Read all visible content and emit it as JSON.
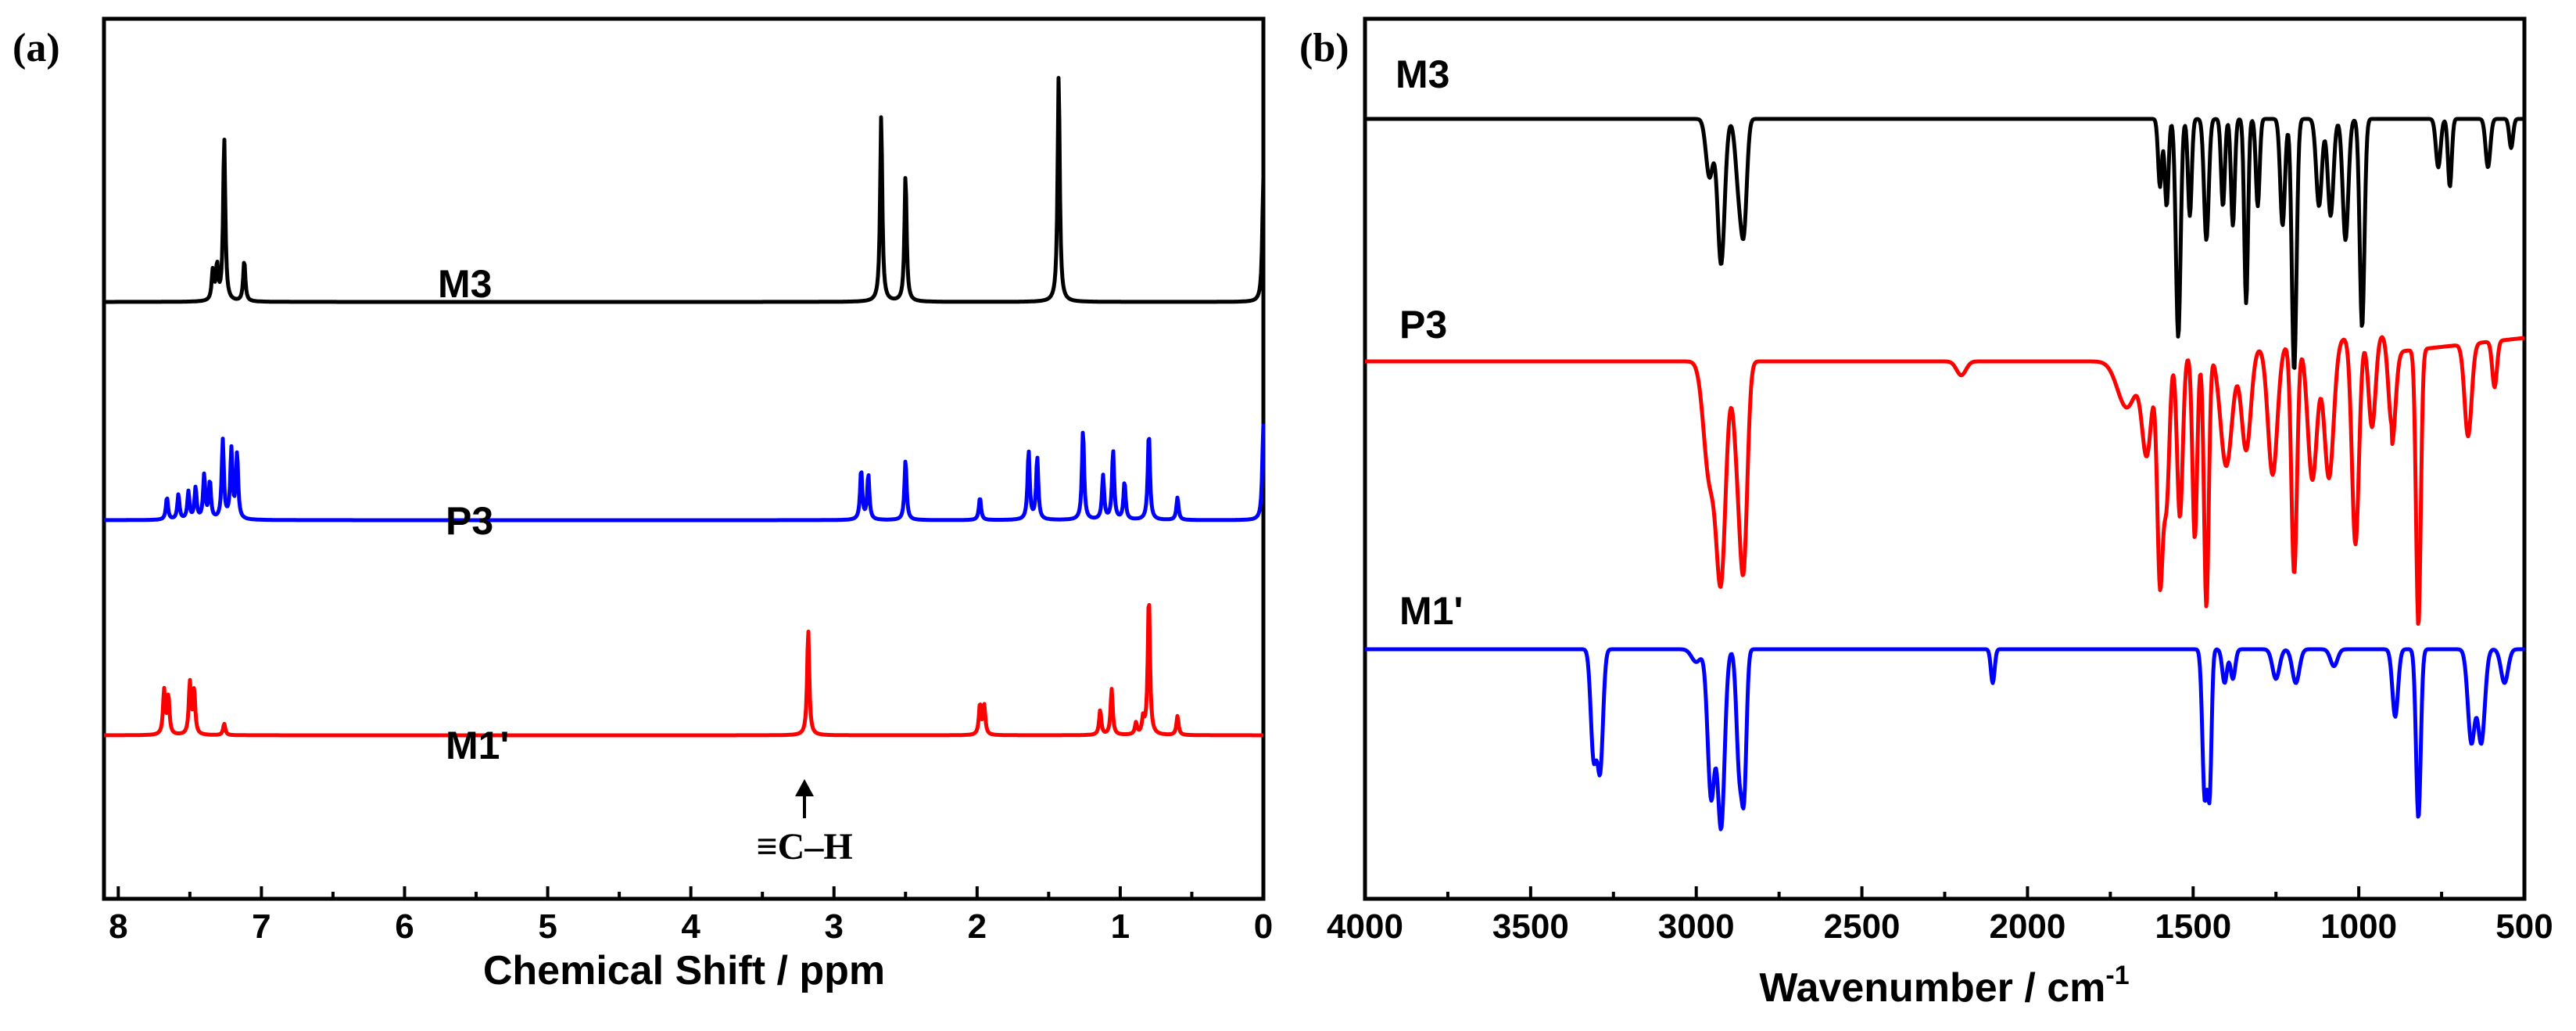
{
  "chart_data": [
    {
      "panel": "(a)",
      "type": "line",
      "subtype": "1H NMR spectra (stacked)",
      "xlabel": "Chemical Shift / ppm",
      "xlim": [
        8.1,
        0
      ],
      "xticks": [
        8,
        7,
        6,
        5,
        4,
        3,
        2,
        1,
        0
      ],
      "xtick_labels": [
        "8",
        "7",
        "6",
        "5",
        "4",
        "3",
        "2",
        "1",
        "0"
      ],
      "series": [
        {
          "name": "M3",
          "color": "#000000",
          "peaks": [
            [
              7.34,
              0.13
            ],
            [
              7.31,
              0.15
            ],
            [
              7.26,
              0.72
            ],
            [
              7.12,
              0.18
            ],
            [
              2.67,
              0.82
            ],
            [
              2.5,
              0.56
            ],
            [
              1.43,
              1.0
            ],
            [
              0.0,
              0.55
            ]
          ]
        },
        {
          "name": "P3",
          "color": "#0000ff",
          "peaks": [
            [
              7.66,
              0.18
            ],
            [
              7.58,
              0.2
            ],
            [
              7.51,
              0.22
            ],
            [
              7.46,
              0.25
            ],
            [
              7.4,
              0.35
            ],
            [
              7.36,
              0.3
            ],
            [
              7.27,
              0.63
            ],
            [
              7.21,
              0.55
            ],
            [
              7.17,
              0.52
            ],
            [
              2.81,
              0.4
            ],
            [
              2.76,
              0.36
            ],
            [
              2.5,
              0.48
            ],
            [
              1.98,
              0.18
            ],
            [
              1.64,
              0.55
            ],
            [
              1.58,
              0.5
            ],
            [
              1.26,
              0.72
            ],
            [
              1.12,
              0.35
            ],
            [
              1.05,
              0.55
            ],
            [
              0.97,
              0.3
            ],
            [
              0.8,
              0.7
            ],
            [
              0.6,
              0.18
            ],
            [
              0.0,
              0.77
            ]
          ]
        },
        {
          "name": "M1'",
          "color": "#ff0000",
          "peaks": [
            [
              7.68,
              0.23
            ],
            [
              7.65,
              0.2
            ],
            [
              7.5,
              0.27
            ],
            [
              7.47,
              0.23
            ],
            [
              7.26,
              0.06
            ],
            [
              3.18,
              0.55
            ],
            [
              1.98,
              0.16
            ],
            [
              1.95,
              0.15
            ],
            [
              1.14,
              0.13
            ],
            [
              1.06,
              0.24
            ],
            [
              0.89,
              0.06
            ],
            [
              0.84,
              0.08
            ],
            [
              0.8,
              0.73
            ],
            [
              0.6,
              0.1
            ]
          ]
        }
      ],
      "annotations": [
        {
          "text": "≡C–H",
          "x": 3.18
        }
      ]
    },
    {
      "panel": "(b)",
      "type": "line",
      "subtype": "FTIR spectra (stacked)",
      "xlabel_main": "Wavenumber / cm",
      "xlabel_sup": "-1",
      "xlim": [
        4000,
        500
      ],
      "xticks": [
        4000,
        3500,
        3000,
        2500,
        2000,
        1500,
        1000,
        500
      ],
      "xtick_labels": [
        "4000",
        "3500",
        "3000",
        "2500",
        "2000",
        "1500",
        "1000",
        "500"
      ],
      "series": [
        {
          "name": "M3",
          "color": "#000000",
          "bands": [
            [
              2960,
              0.12,
              15
            ],
            [
              2925,
              0.3,
              15
            ],
            [
              2870,
              0.15,
              15
            ],
            [
              2855,
              0.18,
              12
            ],
            [
              1600,
              0.14,
              8
            ],
            [
              1580,
              0.18,
              8
            ],
            [
              1545,
              0.45,
              10
            ],
            [
              1510,
              0.2,
              8
            ],
            [
              1460,
              0.25,
              10
            ],
            [
              1410,
              0.18,
              8
            ],
            [
              1380,
              0.22,
              8
            ],
            [
              1340,
              0.38,
              8
            ],
            [
              1305,
              0.18,
              8
            ],
            [
              1230,
              0.22,
              10
            ],
            [
              1195,
              0.52,
              10
            ],
            [
              1120,
              0.18,
              12
            ],
            [
              1085,
              0.2,
              12
            ],
            [
              1040,
              0.25,
              12
            ],
            [
              990,
              0.43,
              10
            ],
            [
              760,
              0.1,
              10
            ],
            [
              725,
              0.14,
              8
            ],
            [
              610,
              0.1,
              10
            ],
            [
              540,
              0.06,
              8
            ]
          ]
        },
        {
          "name": "P3",
          "color": "#ff0000",
          "bands": [
            [
              2960,
              0.25,
              25
            ],
            [
              2925,
              0.45,
              20
            ],
            [
              2870,
              0.25,
              20
            ],
            [
              2855,
              0.3,
              15
            ],
            [
              2200,
              0.03,
              20
            ],
            [
              1700,
              0.1,
              40
            ],
            [
              1640,
              0.2,
              20
            ],
            [
              1600,
              0.48,
              12
            ],
            [
              1580,
              0.3,
              12
            ],
            [
              1540,
              0.35,
              12
            ],
            [
              1495,
              0.4,
              10
            ],
            [
              1460,
              0.55,
              10
            ],
            [
              1400,
              0.25,
              25
            ],
            [
              1340,
              0.22,
              20
            ],
            [
              1260,
              0.28,
              20
            ],
            [
              1195,
              0.5,
              12
            ],
            [
              1140,
              0.3,
              20
            ],
            [
              1090,
              0.3,
              20
            ],
            [
              1010,
              0.45,
              15
            ],
            [
              960,
              0.2,
              15
            ],
            [
              900,
              0.2,
              15
            ],
            [
              820,
              0.6,
              10
            ],
            [
              670,
              0.2,
              15
            ],
            [
              590,
              0.1,
              10
            ]
          ]
        },
        {
          "name": "M1'",
          "color": "#0000ff",
          "bands": [
            [
              3310,
              0.25,
              12
            ],
            [
              3290,
              0.28,
              12
            ],
            [
              3000,
              0.03,
              20
            ],
            [
              2955,
              0.35,
              15
            ],
            [
              2925,
              0.42,
              15
            ],
            [
              2870,
              0.28,
              12
            ],
            [
              2855,
              0.3,
              10
            ],
            [
              2105,
              0.08,
              8
            ],
            [
              1465,
              0.35,
              10
            ],
            [
              1450,
              0.32,
              8
            ],
            [
              1405,
              0.08,
              10
            ],
            [
              1380,
              0.07,
              10
            ],
            [
              1250,
              0.07,
              15
            ],
            [
              1190,
              0.08,
              15
            ],
            [
              1075,
              0.04,
              15
            ],
            [
              890,
              0.16,
              12
            ],
            [
              820,
              0.4,
              10
            ],
            [
              660,
              0.22,
              15
            ],
            [
              630,
              0.22,
              15
            ],
            [
              560,
              0.08,
              15
            ]
          ]
        }
      ]
    }
  ]
}
